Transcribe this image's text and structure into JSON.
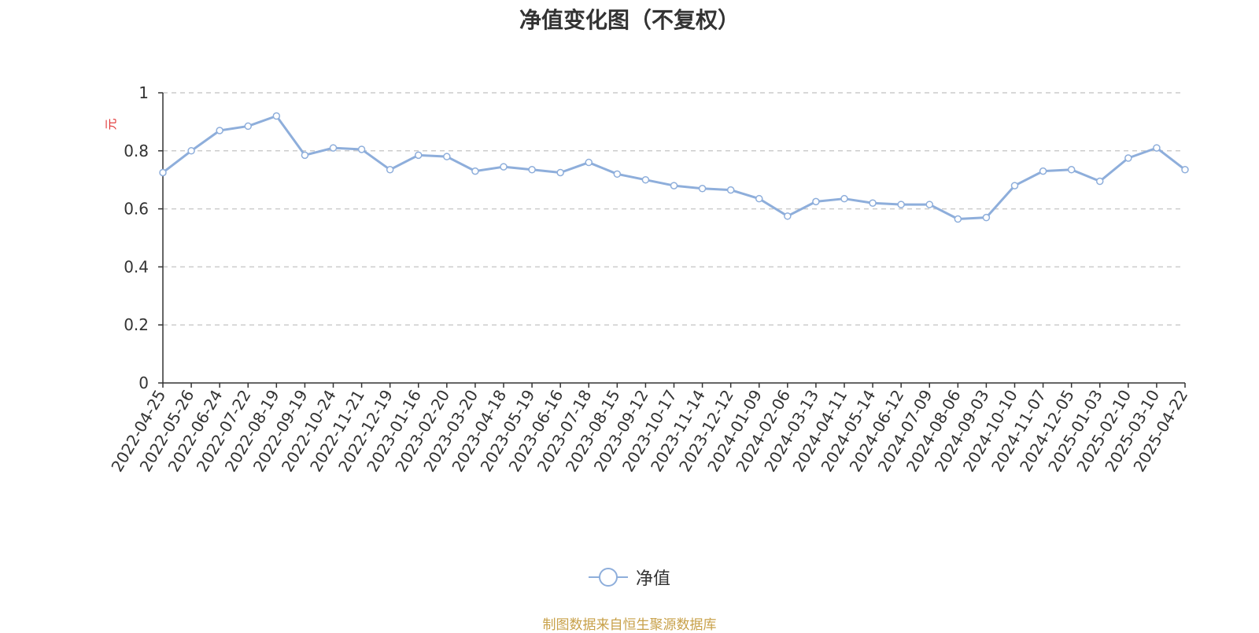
{
  "chart_data": {
    "type": "line",
    "title": "净值变化图（不复权）",
    "ylabel": "元",
    "ylim": [
      0,
      1
    ],
    "yticks": [
      "0",
      "0.2",
      "0.4",
      "0.6",
      "0.8",
      "1"
    ],
    "grid": true,
    "legend_position": "bottom-center",
    "x_tick_labels": [
      "2022-04-25",
      "2022-05-26",
      "2022-06-24",
      "2022-07-22",
      "2022-08-19",
      "2022-09-19",
      "2022-10-24",
      "2022-11-21",
      "2022-12-19",
      "2023-01-16",
      "2023-02-20",
      "2023-03-20",
      "2023-04-18",
      "2023-05-19",
      "2023-06-16",
      "2023-07-18",
      "2023-08-15",
      "2023-09-12",
      "2023-10-17",
      "2023-11-14",
      "2023-12-12",
      "2024-01-09",
      "2024-02-06",
      "2024-03-13",
      "2024-04-11",
      "2024-05-14",
      "2024-06-12",
      "2024-07-09",
      "2024-08-06",
      "2024-09-03",
      "2024-10-10",
      "2024-11-07",
      "2024-12-05",
      "2025-01-03",
      "2025-02-10",
      "2025-03-10",
      "2025-04-22"
    ],
    "series": [
      {
        "name": "净值",
        "color": "#8eaedb",
        "x": [
          "2022-04-25",
          "2022-05-26",
          "2022-06-24",
          "2022-07-22",
          "2022-08-19",
          "2022-09-19",
          "2022-10-24",
          "2022-11-21",
          "2022-12-19",
          "2023-01-16",
          "2023-02-20",
          "2023-03-20",
          "2023-04-18",
          "2023-05-19",
          "2023-06-16",
          "2023-07-18",
          "2023-08-15",
          "2023-09-12",
          "2023-10-17",
          "2023-11-14",
          "2023-12-12",
          "2024-01-09",
          "2024-02-06",
          "2024-03-13",
          "2024-04-11",
          "2024-05-14",
          "2024-06-12",
          "2024-07-09",
          "2024-08-06",
          "2024-09-03",
          "2024-10-10",
          "2024-11-07",
          "2024-12-05",
          "2025-01-03",
          "2025-02-10",
          "2025-03-10",
          "2025-04-22"
        ],
        "values": [
          0.725,
          0.8,
          0.87,
          0.885,
          0.92,
          0.785,
          0.81,
          0.805,
          0.735,
          0.785,
          0.78,
          0.73,
          0.745,
          0.735,
          0.725,
          0.76,
          0.72,
          0.7,
          0.68,
          0.67,
          0.665,
          0.635,
          0.575,
          0.625,
          0.635,
          0.62,
          0.615,
          0.615,
          0.565,
          0.57,
          0.68,
          0.73,
          0.735,
          0.695,
          0.775,
          0.81,
          0.735
        ]
      }
    ]
  },
  "legend": {
    "label": "净值"
  },
  "footer": {
    "source": "制图数据来自恒生聚源数据库",
    "color": "#c8a14a"
  },
  "colors": {
    "axis": "#333333",
    "grid": "#cccccc",
    "unit": "#e03030",
    "line": "#8eaedb"
  }
}
